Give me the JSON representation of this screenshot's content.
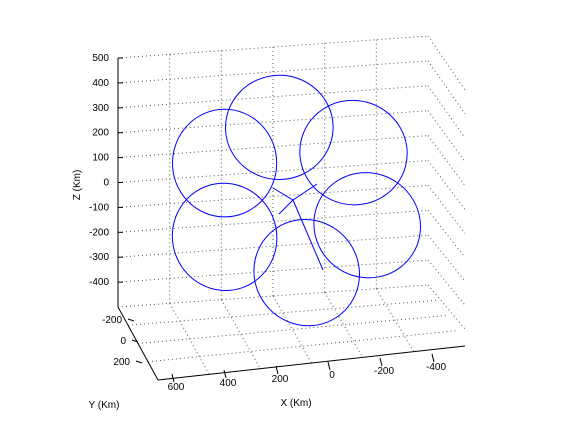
{
  "chart_data": {
    "type": "line",
    "title": "",
    "xlabel": "X (Km)",
    "ylabel": "Y (Km)",
    "zlabel": "Z (Km)",
    "x_ticks": [
      600,
      400,
      200,
      0,
      -200,
      -400
    ],
    "y_ticks": [
      -200,
      0,
      200
    ],
    "z_ticks": [
      500,
      400,
      300,
      200,
      100,
      0,
      -100,
      -200,
      -300,
      -400
    ],
    "zlim": [
      -500,
      500
    ],
    "grid": true,
    "line_color": "#0000ff",
    "series": [
      {
        "loops": 6,
        "loop_radius_km": 250,
        "loop_center_distance_km": 350,
        "center": [
          0,
          0,
          0
        ]
      }
    ]
  }
}
